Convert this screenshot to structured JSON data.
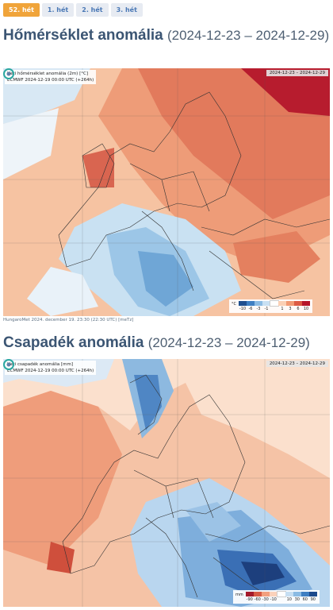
{
  "tabs": [
    {
      "label": "52. hét",
      "active": true
    },
    {
      "label": "1. hét",
      "active": false
    },
    {
      "label": "2. hét",
      "active": false
    },
    {
      "label": "3. hét",
      "active": false
    }
  ],
  "temperature": {
    "title": "Hőmérséklet anomália",
    "dates": "(2024-12-23 – 2024-12-29)",
    "map_info_line1": "Heti hőmérséklet anomália (2m) [°C]",
    "map_info_line2": "ECMWF 2024-12-19 00:00 UTC (+264h)",
    "map_date": "2024-12-23 – 2024-12-29",
    "legend_unit": "°C",
    "legend_ticks": [
      "-10",
      "-6",
      "-3",
      "-1",
      "",
      "1",
      "3",
      "6",
      "10"
    ],
    "legend_colors": [
      "#1f4f8f",
      "#3f7fc2",
      "#8cbbe3",
      "#c8e0f3",
      "#ffffff",
      "#fbd0b5",
      "#f19a74",
      "#dc5a44",
      "#b5152a"
    ]
  },
  "credit": "HungaroMet 2024. december 19. 23:30 (22:30 UTC) [meTz]",
  "precipitation": {
    "title": "Csapadék anomália",
    "dates": "(2024-12-23 – 2024-12-29)",
    "map_info_line1": "Heti csapadék anomália [mm]",
    "map_info_line2": "ECMWF 2024-12-19 00:00 UTC (+264h)",
    "map_date": "2024-12-23 – 2024-12-29",
    "legend_unit": "mm",
    "legend_ticks": [
      "-90",
      "-60",
      "-30",
      "-10",
      "",
      "10",
      "30",
      "60",
      "90"
    ],
    "legend_colors": [
      "#a31a2a",
      "#d65a44",
      "#f2a07e",
      "#fbd2bb",
      "#ffffff",
      "#c6def2",
      "#8bbbe3",
      "#3f7fc2",
      "#1d4a8c"
    ]
  },
  "colors": {
    "accent": "#f0a43a",
    "tab_text": "#4a78b5",
    "heading": "#3b5573"
  }
}
